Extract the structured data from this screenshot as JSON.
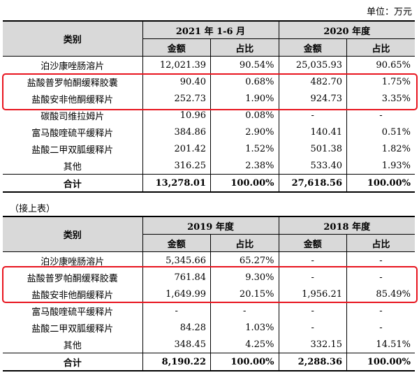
{
  "unit_label": "单位：万元",
  "continuation_label": "（接上表）",
  "highlight_color": "#e8141e",
  "header_bg": "#d9d9d9",
  "table1": {
    "category_header": "类别",
    "periods": [
      "2021 年 1-6 月",
      "2020 年度"
    ],
    "sub_headers": [
      "金额",
      "占比",
      "金额",
      "占比"
    ],
    "rows": [
      {
        "name": "泊沙康唑肠溶片",
        "cells": [
          "12,021.39",
          "90.54%",
          "25,035.93",
          "90.65%"
        ]
      },
      {
        "name": "盐酸普罗帕酮缓释胶囊",
        "cells": [
          "90.40",
          "0.68%",
          "482.70",
          "1.75%"
        ]
      },
      {
        "name": "盐酸安非他酮缓释片",
        "cells": [
          "252.73",
          "1.90%",
          "924.73",
          "3.35%"
        ]
      },
      {
        "name": "碳酸司维拉姆片",
        "cells": [
          "10.96",
          "0.08%",
          "-",
          "-"
        ]
      },
      {
        "name": "富马酸喹硫平缓释片",
        "cells": [
          "384.86",
          "2.90%",
          "140.41",
          "0.51%"
        ]
      },
      {
        "name": "盐酸二甲双胍缓释片",
        "cells": [
          "201.42",
          "1.52%",
          "501.38",
          "1.82%"
        ]
      },
      {
        "name": "其他",
        "cells": [
          "316.25",
          "2.38%",
          "533.40",
          "1.93%"
        ]
      }
    ],
    "total": {
      "name": "合计",
      "cells": [
        "13,278.01",
        "100.00%",
        "27,618.56",
        "100.00%"
      ]
    }
  },
  "table2": {
    "category_header": "类别",
    "periods": [
      "2019 年度",
      "2018 年度"
    ],
    "sub_headers": [
      "金额",
      "占比",
      "金额",
      "占比"
    ],
    "rows": [
      {
        "name": "泊沙康唑肠溶片",
        "cells": [
          "5,345.66",
          "65.27%",
          "-",
          "-"
        ]
      },
      {
        "name": "盐酸普罗帕酮缓释胶囊",
        "cells": [
          "761.84",
          "9.30%",
          "-",
          "-"
        ]
      },
      {
        "name": "盐酸安非他酮缓释片",
        "cells": [
          "1,649.99",
          "20.15%",
          "1,956.21",
          "85.49%"
        ]
      },
      {
        "name": "富马酸喹硫平缓释片",
        "cells": [
          "-",
          "-",
          "-",
          "-"
        ]
      },
      {
        "name": "盐酸二甲双胍缓释片",
        "cells": [
          "84.28",
          "1.03%",
          "-",
          "-"
        ]
      },
      {
        "name": "其他",
        "cells": [
          "348.45",
          "4.25%",
          "332.15",
          "14.51%"
        ]
      }
    ],
    "total": {
      "name": "合计",
      "cells": [
        "8,190.22",
        "100.00%",
        "2,288.36",
        "100.00%"
      ]
    }
  }
}
